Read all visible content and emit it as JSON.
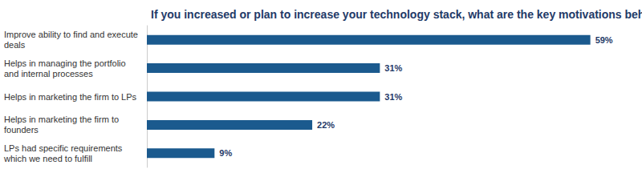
{
  "chart_data": {
    "type": "bar",
    "orientation": "horizontal",
    "title": "If you increased or plan to increase your technology stack, what are the key motivations behind that?",
    "categories": [
      "Improve ability to find and execute deals",
      "Helps in managing the portfolio and internal processes",
      "Helps in marketing the firm to LPs",
      "Helps in marketing the firm to founders",
      "LPs had specific requirements which we need to fulfill"
    ],
    "values": [
      59,
      31,
      31,
      22,
      9
    ],
    "value_labels": [
      "59%",
      "31%",
      "31%",
      "22%",
      "9%"
    ],
    "color": "#1b5a8e",
    "data_labels": true,
    "grid": false,
    "tick_labels": "y"
  }
}
